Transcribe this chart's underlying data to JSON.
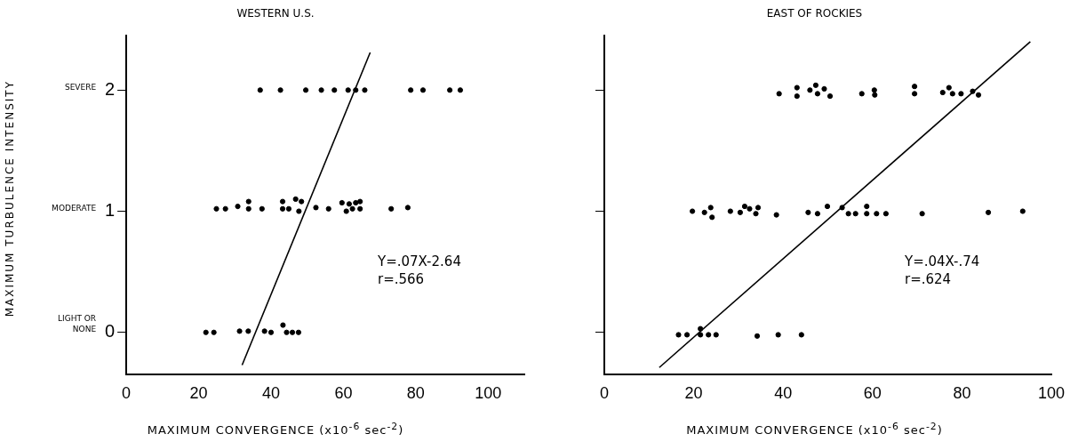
{
  "chart_data": [
    {
      "type": "scatter",
      "title": "WESTERN U.S.",
      "xlabel": "MAXIMUM CONVERGENCE (x10$^{-6}$ sec$^{-2}$)",
      "ylabel": "MAXIMUM TURBULENCE INTENSITY",
      "xlim": [
        0,
        110
      ],
      "xticks": [
        0,
        20,
        40,
        60,
        80,
        100
      ],
      "ylim": [
        -0.35,
        2.45
      ],
      "yticks": [
        0,
        1,
        2
      ],
      "grid": false,
      "legend": false,
      "annotations": [
        "SEVERE",
        "MODERATE",
        "LIGHT OR NONE",
        "Y=.07X-2.64",
        "r=.566"
      ],
      "series": [
        {
          "color": "#000000",
          "x": [
            37.0,
            42.6,
            49.6,
            53.9,
            57.5,
            61.3,
            63.4,
            65.9,
            78.6,
            82.0,
            89.4,
            92.3,
            24.9,
            27.4,
            30.8,
            33.8,
            33.8,
            37.5,
            43.2,
            43.2,
            44.9,
            46.8,
            48.4,
            47.7,
            52.4,
            55.9,
            59.6,
            61.6,
            60.8,
            62.5,
            63.4,
            64.6,
            64.6,
            73.2,
            77.8,
            22.0,
            24.2,
            31.3,
            33.7,
            38.2,
            40.0,
            43.3,
            44.3,
            45.9,
            47.6
          ],
          "values": [
            2.0,
            2.0,
            2.0,
            2.0,
            2.0,
            2.0,
            2.0,
            2.0,
            2.0,
            2.0,
            2.0,
            2.0,
            1.02,
            1.02,
            1.04,
            1.08,
            1.02,
            1.02,
            1.08,
            1.02,
            1.02,
            1.1,
            1.08,
            1.0,
            1.03,
            1.02,
            1.07,
            1.06,
            1.0,
            1.02,
            1.07,
            1.08,
            1.02,
            1.02,
            1.03,
            0.0,
            0.0,
            0.01,
            0.01,
            0.01,
            0.0,
            0.06,
            0.0,
            0.0,
            0.0
          ]
        },
        {
          "type": "line",
          "color": "#000000",
          "x": [
            32.0,
            67.4
          ],
          "values": [
            -0.27,
            2.31
          ]
        }
      ]
    },
    {
      "type": "scatter",
      "title": "EAST OF ROCKIES",
      "xlabel": "MAXIMUM CONVERGENCE (x10$^{-6}$ sec$^{-2}$)",
      "xlim": [
        0,
        100
      ],
      "xticks": [
        0,
        20,
        40,
        60,
        80,
        100
      ],
      "ylim": [
        -0.35,
        2.45
      ],
      "yticks": [
        0,
        1,
        2
      ],
      "tick_labels": "x",
      "grid": false,
      "legend": false,
      "annotations": [
        "Y=.04X-.74",
        "r=.624"
      ],
      "series": [
        {
          "color": "#000000",
          "x": [
            39.1,
            43.1,
            43.1,
            46.0,
            47.3,
            47.7,
            49.2,
            50.5,
            57.6,
            60.4,
            60.5,
            69.4,
            69.4,
            75.7,
            77.1,
            77.9,
            79.8,
            82.4,
            83.7,
            19.7,
            22.4,
            23.8,
            24.1,
            28.2,
            30.4,
            31.4,
            32.5,
            33.9,
            34.4,
            38.5,
            45.6,
            47.7,
            49.9,
            53.2,
            54.6,
            56.2,
            58.7,
            58.7,
            60.9,
            63.0,
            71.1,
            85.9,
            93.6,
            16.6,
            18.5,
            21.5,
            21.5,
            23.3,
            25.0,
            34.2,
            38.9,
            44.1
          ],
          "values": [
            1.97,
            2.02,
            1.95,
            2.0,
            2.04,
            1.97,
            2.01,
            1.95,
            1.97,
            2.0,
            1.96,
            2.03,
            1.97,
            1.98,
            2.02,
            1.97,
            1.97,
            1.99,
            1.96,
            1.0,
            0.99,
            1.03,
            0.95,
            1.0,
            0.99,
            1.04,
            1.02,
            0.98,
            1.03,
            0.97,
            0.99,
            0.98,
            1.04,
            1.03,
            0.98,
            0.98,
            1.04,
            0.98,
            0.98,
            0.98,
            0.98,
            0.99,
            1.0,
            -0.02,
            -0.02,
            0.03,
            -0.02,
            -0.02,
            -0.02,
            -0.03,
            -0.02,
            -0.02
          ]
        },
        {
          "type": "line",
          "color": "#000000",
          "x": [
            12.3,
            95.3
          ],
          "values": [
            -0.29,
            2.4
          ]
        }
      ]
    }
  ]
}
